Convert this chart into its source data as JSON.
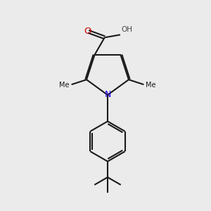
{
  "background_color": "#ebebeb",
  "bond_color": "#1a1a1a",
  "nitrogen_color": "#2200ee",
  "oxygen_color": "#cc0000",
  "oh_color": "#4a4a4a",
  "methyl_color": "#1a1a1a",
  "line_width": 1.5,
  "figsize": [
    3.0,
    3.0
  ],
  "dpi": 100,
  "xlim": [
    0,
    10
  ],
  "ylim": [
    0,
    10
  ]
}
